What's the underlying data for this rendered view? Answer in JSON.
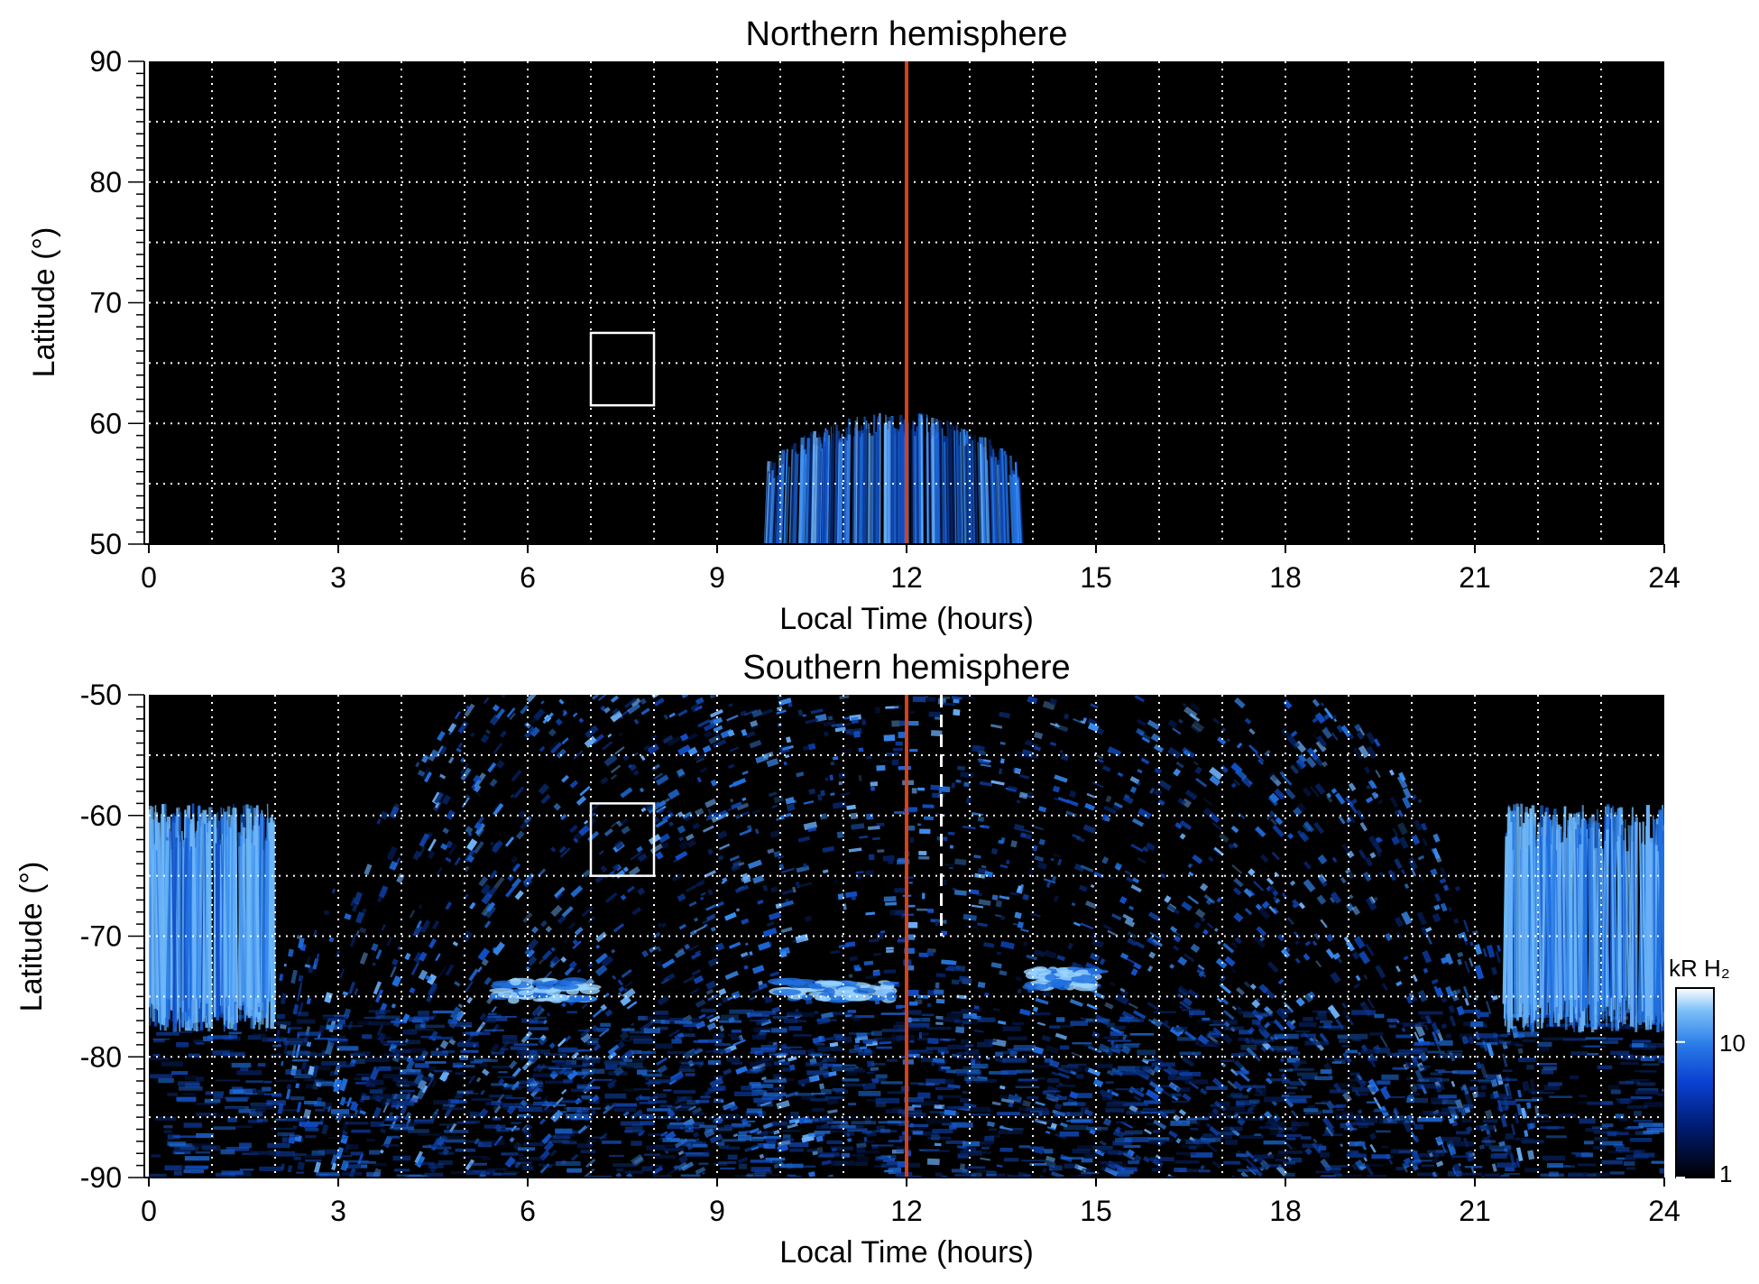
{
  "chart_data": [
    {
      "type": "heatmap",
      "title": "Northern hemisphere",
      "xlabel": "Local Time (hours)",
      "ylabel": "Latitude (°)",
      "xlim": [
        0,
        24
      ],
      "ylim": [
        50,
        90
      ],
      "xticks": [
        0,
        3,
        6,
        9,
        12,
        15,
        18,
        21,
        24
      ],
      "yticks": [
        50,
        60,
        70,
        80,
        90
      ],
      "grid": true,
      "noon_line_lt": 12,
      "box": {
        "lt": [
          7.0,
          8.0
        ],
        "lat": [
          61.5,
          67.5
        ]
      },
      "emission_region": {
        "lt": [
          9.8,
          13.8
        ],
        "lat": [
          50,
          61
        ],
        "peak_lt": 11.3
      }
    },
    {
      "type": "heatmap",
      "title": "Southern hemisphere",
      "xlabel": "Local Time (hours)",
      "ylabel": "Latitude (°)",
      "xlim": [
        0,
        24
      ],
      "ylim": [
        -90,
        -50
      ],
      "xticks": [
        0,
        3,
        6,
        9,
        12,
        15,
        18,
        21,
        24
      ],
      "yticks": [
        -90,
        -80,
        -70,
        -60,
        -50
      ],
      "grid": true,
      "noon_line_lt": 12,
      "dashed_line_lt": 12.55,
      "box": {
        "lt": [
          7.0,
          8.0
        ],
        "lat": [
          -65,
          -59
        ]
      },
      "bright_arcs": [
        {
          "lt": [
            5.5,
            7.0
          ],
          "lat": -74.5
        },
        {
          "lt": [
            10.0,
            11.8
          ],
          "lat": -74.5
        },
        {
          "lt": [
            14.0,
            15.0
          ],
          "lat": -73.5
        }
      ],
      "colorbar": {
        "label": "kR H₂",
        "scale": "log",
        "range": [
          1,
          25
        ],
        "ticks": [
          1,
          10
        ],
        "colors": [
          "#000000",
          "#001a6b",
          "#0a3fd1",
          "#2a7be8",
          "#7cc0f8",
          "#ffffff"
        ]
      }
    }
  ],
  "colors": {
    "background": "#000000",
    "grid": "#ffffff",
    "noon_line": "#d4411b",
    "emission": "#1f6fe0",
    "emission_bright": "#9bd4ff"
  }
}
